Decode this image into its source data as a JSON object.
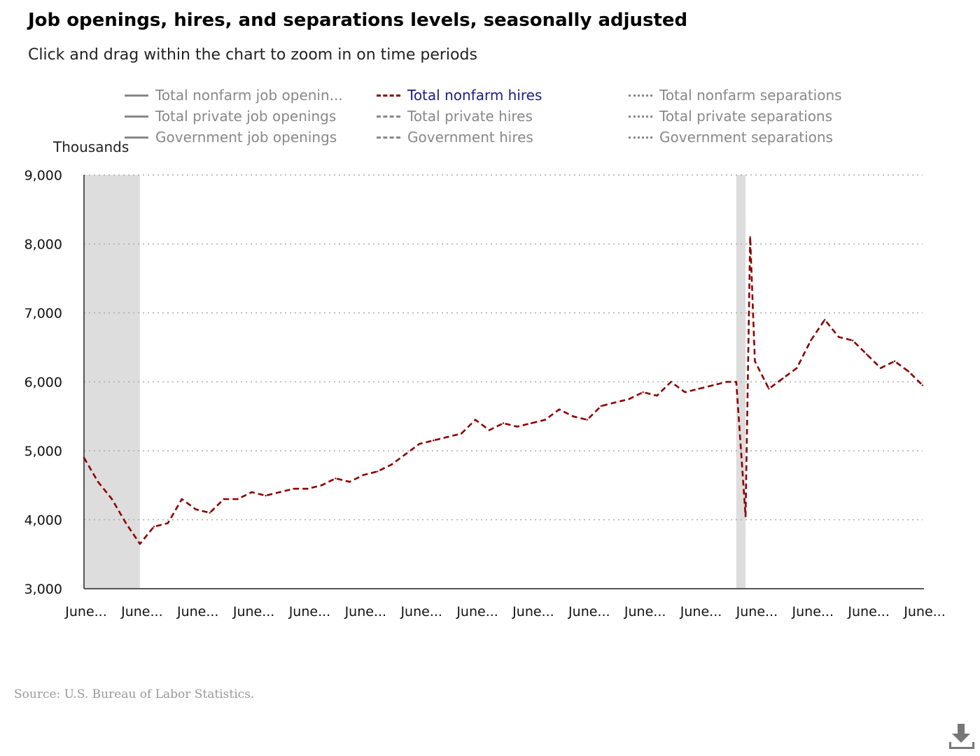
{
  "header": {
    "title": "Job openings, hires, and separations levels, seasonally adjusted",
    "subtitle": "Click and drag within the chart to zoom in on time periods"
  },
  "legend": {
    "items": [
      {
        "label": "Total nonfarm job openin...",
        "style": "solid",
        "active": false
      },
      {
        "label": "Total nonfarm hires",
        "style": "dash",
        "active": true
      },
      {
        "label": "Total nonfarm separations",
        "style": "dot",
        "active": false
      },
      {
        "label": "Total private job openings",
        "style": "solid",
        "active": false
      },
      {
        "label": "Total private hires",
        "style": "dash",
        "active": false
      },
      {
        "label": "Total private separations",
        "style": "dot",
        "active": false
      },
      {
        "label": "Government job openings",
        "style": "solid",
        "active": false
      },
      {
        "label": "Government hires",
        "style": "dash",
        "active": false
      },
      {
        "label": "Government separations",
        "style": "dot",
        "active": false
      }
    ]
  },
  "axis": {
    "units_label": "Thousands"
  },
  "footer": {
    "source": "Source: U.S. Bureau of Labor Statistics.",
    "download_icon": "download-icon"
  },
  "colors": {
    "series": "#8b0000",
    "recession": "#dddddd",
    "legend_active": "#1c1c8c",
    "legend_inactive": "#888888"
  },
  "chart_data": {
    "type": "line",
    "title": "Job openings, hires, and separations levels, seasonally adjusted",
    "ylabel": "Thousands",
    "ylim": [
      3000,
      9000
    ],
    "y_ticks": [
      3000,
      4000,
      5000,
      6000,
      7000,
      8000,
      9000
    ],
    "y_tick_labels": [
      "3,000",
      "4,000",
      "5,000",
      "6,000",
      "7,000",
      "8,000",
      "9,000"
    ],
    "x_start": "2008-06",
    "x_end": "2023-06",
    "x_tick_labels": [
      "June...",
      "June...",
      "June...",
      "June...",
      "June...",
      "June...",
      "June...",
      "June...",
      "June...",
      "June...",
      "June...",
      "June...",
      "June...",
      "June...",
      "June...",
      "June..."
    ],
    "x_ticks": [
      "2008-06",
      "2009-06",
      "2010-06",
      "2011-06",
      "2012-06",
      "2013-06",
      "2014-06",
      "2015-06",
      "2016-06",
      "2017-06",
      "2018-06",
      "2019-06",
      "2020-06",
      "2021-06",
      "2022-06",
      "2023-06"
    ],
    "grid": true,
    "recessions": [
      {
        "start": "2008-06",
        "end": "2009-06"
      },
      {
        "start": "2020-02",
        "end": "2020-04"
      }
    ],
    "series": [
      {
        "name": "Total nonfarm hires",
        "style": "dashed",
        "x": [
          "2008-06",
          "2008-09",
          "2008-12",
          "2009-03",
          "2009-06",
          "2009-09",
          "2009-12",
          "2010-03",
          "2010-06",
          "2010-09",
          "2010-12",
          "2011-03",
          "2011-06",
          "2011-09",
          "2011-12",
          "2012-03",
          "2012-06",
          "2012-09",
          "2012-12",
          "2013-03",
          "2013-06",
          "2013-09",
          "2013-12",
          "2014-03",
          "2014-06",
          "2014-09",
          "2014-12",
          "2015-03",
          "2015-06",
          "2015-09",
          "2015-12",
          "2016-03",
          "2016-06",
          "2016-09",
          "2016-12",
          "2017-03",
          "2017-06",
          "2017-09",
          "2017-12",
          "2018-03",
          "2018-06",
          "2018-09",
          "2018-12",
          "2019-03",
          "2019-06",
          "2019-09",
          "2019-12",
          "2020-02",
          "2020-04",
          "2020-05",
          "2020-06",
          "2020-09",
          "2020-12",
          "2021-03",
          "2021-06",
          "2021-09",
          "2021-12",
          "2022-03",
          "2022-06",
          "2022-09",
          "2022-12",
          "2023-03",
          "2023-06"
        ],
        "values": [
          4900,
          4550,
          4300,
          3950,
          3650,
          3900,
          3950,
          4300,
          4150,
          4100,
          4300,
          4300,
          4400,
          4350,
          4400,
          4450,
          4450,
          4500,
          4600,
          4550,
          4650,
          4700,
          4800,
          4950,
          5100,
          5150,
          5200,
          5250,
          5450,
          5300,
          5400,
          5350,
          5400,
          5450,
          5600,
          5500,
          5450,
          5650,
          5700,
          5750,
          5850,
          5800,
          6000,
          5850,
          5900,
          5950,
          6000,
          6000,
          4050,
          8100,
          6300,
          5900,
          6050,
          6200,
          6600,
          6900,
          6650,
          6600,
          6400,
          6200,
          6300,
          6150,
          5950
        ]
      }
    ]
  }
}
